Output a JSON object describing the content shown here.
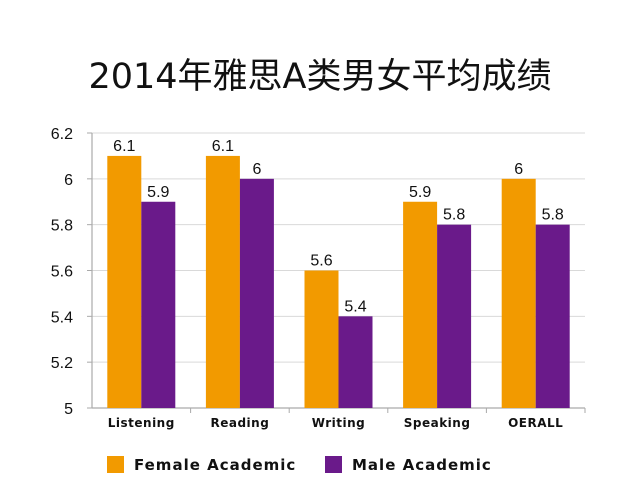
{
  "chart_data": {
    "type": "bar",
    "title": "2014年雅思A类男女平均成绩",
    "categories": [
      "Listening",
      "Reading",
      "Writing",
      "Speaking",
      "OERALL"
    ],
    "series": [
      {
        "name": "Female Academic",
        "values": [
          6.1,
          6.1,
          5.6,
          5.9,
          6
        ],
        "color": "#f29a00"
      },
      {
        "name": "Male Academic",
        "values": [
          5.9,
          6,
          5.4,
          5.8,
          5.8
        ],
        "color": "#6a1a8a"
      }
    ],
    "ylim": [
      5,
      6.2
    ],
    "yticks": [
      "5",
      "5.2",
      "5.4",
      "5.6",
      "5.8",
      "6",
      "6.2"
    ],
    "grid": true,
    "legend_position": "bottom",
    "axis_color": "#aaaaaa",
    "grid_color": "#d9d9d9"
  }
}
